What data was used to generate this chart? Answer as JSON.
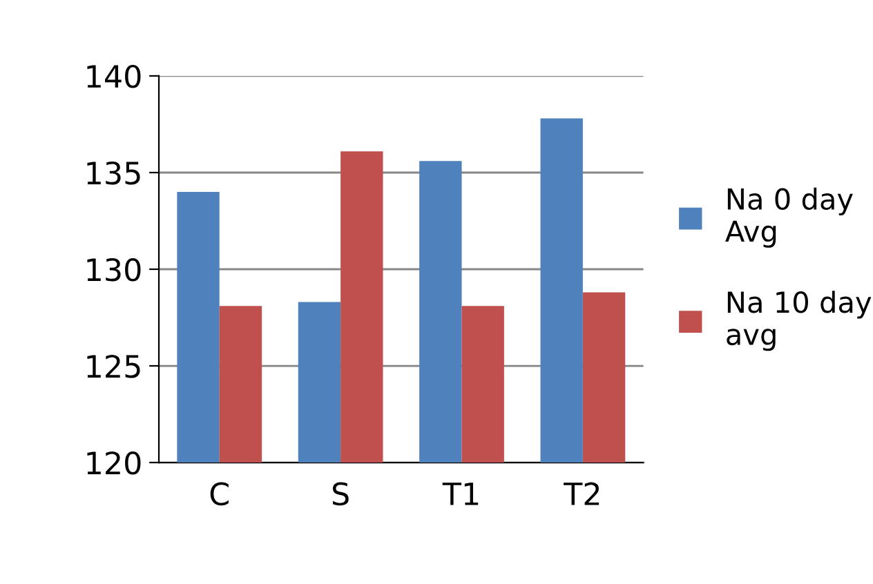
{
  "chart_data": {
    "type": "bar",
    "categories": [
      "C",
      "S",
      "T1",
      "T2"
    ],
    "series": [
      {
        "name": "Na 0 day Avg",
        "color": "#4f81bd",
        "values": [
          134.0,
          128.3,
          135.6,
          137.8
        ]
      },
      {
        "name": "Na 10 day avg",
        "color": "#c0504d",
        "values": [
          128.1,
          136.1,
          128.1,
          128.8
        ]
      }
    ],
    "ylim": [
      120,
      140
    ],
    "yticks": [
      120,
      125,
      130,
      135,
      140
    ],
    "grid": "y",
    "legend": "right"
  }
}
